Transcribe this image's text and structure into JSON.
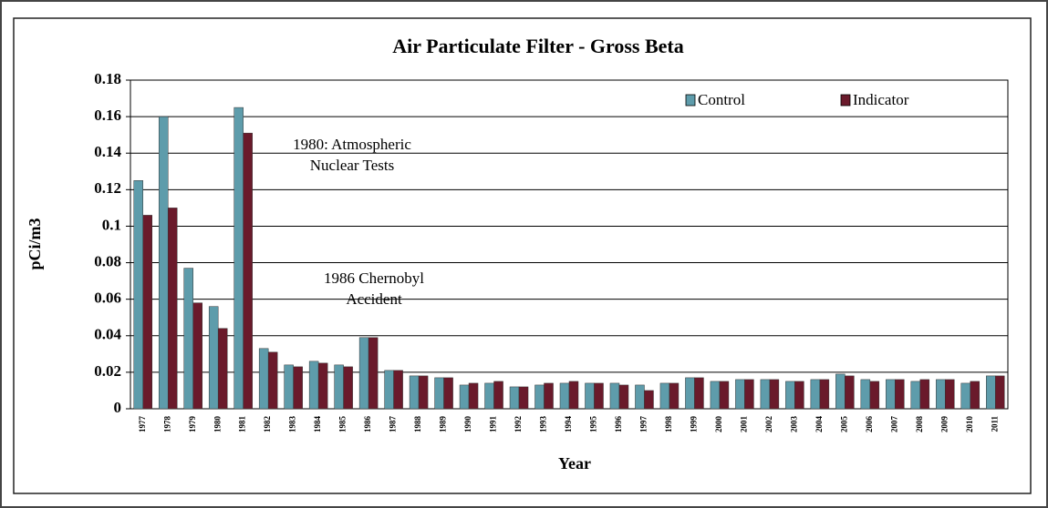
{
  "chart_data": {
    "type": "bar",
    "title": "Air Particulate Filter - Gross Beta",
    "x_label": "Year",
    "y_label": "pCi/m3",
    "categories": [
      "1977",
      "1978",
      "1979",
      "1980",
      "1981",
      "1982",
      "1983",
      "1984",
      "1985",
      "1986",
      "1987",
      "1988",
      "1989",
      "1990",
      "1991",
      "1992",
      "1993",
      "1994",
      "1995",
      "1996",
      "1997",
      "1998",
      "1999",
      "2000",
      "2001",
      "2002",
      "2003",
      "2004",
      "2005",
      "2006",
      "2007",
      "2008",
      "2009",
      "2010",
      "2011"
    ],
    "series": [
      {
        "name": "Control",
        "color": "#5e9cab",
        "values": [
          0.125,
          0.16,
          0.077,
          0.056,
          0.165,
          0.033,
          0.024,
          0.026,
          0.024,
          0.039,
          0.021,
          0.018,
          0.017,
          0.013,
          0.014,
          0.012,
          0.013,
          0.014,
          0.014,
          0.014,
          0.013,
          0.014,
          0.017,
          0.015,
          0.016,
          0.016,
          0.015,
          0.016,
          0.019,
          0.016,
          0.016,
          0.015,
          0.016,
          0.014,
          0.018
        ]
      },
      {
        "name": "Indicator",
        "color": "#6a1a2b",
        "values": [
          0.106,
          0.11,
          0.058,
          0.044,
          0.151,
          0.031,
          0.023,
          0.025,
          0.023,
          0.039,
          0.021,
          0.018,
          0.017,
          0.014,
          0.015,
          0.012,
          0.014,
          0.015,
          0.014,
          0.013,
          0.01,
          0.014,
          0.017,
          0.015,
          0.016,
          0.016,
          0.015,
          0.016,
          0.018,
          0.015,
          0.016,
          0.016,
          0.016,
          0.015,
          0.018
        ]
      }
    ],
    "annotations": [
      [
        "1980: Atmospheric",
        "Nuclear Tests"
      ],
      [
        "1986 Chernobyl",
        "Accident"
      ]
    ],
    "ylim": [
      0,
      0.18
    ],
    "yticks": [
      0,
      0.02,
      0.04,
      0.06,
      0.08,
      0.1,
      0.12,
      0.14,
      0.16,
      0.18
    ],
    "grid": true,
    "legend": "top-right"
  }
}
